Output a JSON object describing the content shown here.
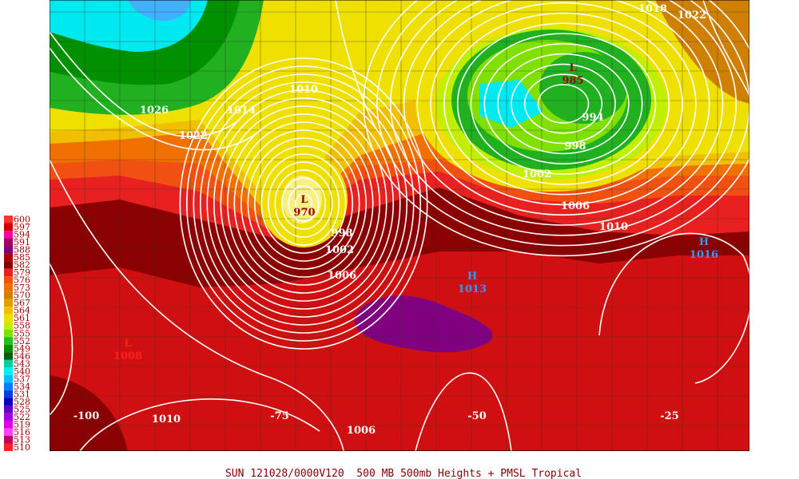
{
  "legend": {
    "items": [
      {
        "label": "600",
        "color": "#ff3030"
      },
      {
        "label": "597",
        "color": "#d00000"
      },
      {
        "label": "594",
        "color": "#ff00a0"
      },
      {
        "label": "591",
        "color": "#a00060"
      },
      {
        "label": "588",
        "color": "#800080"
      },
      {
        "label": "585",
        "color": "#b00000"
      },
      {
        "label": "582",
        "color": "#800000"
      },
      {
        "label": "579",
        "color": "#e82020"
      },
      {
        "label": "576",
        "color": "#f05010"
      },
      {
        "label": "573",
        "color": "#f07000"
      },
      {
        "label": "570",
        "color": "#d08000"
      },
      {
        "label": "567",
        "color": "#e0a000"
      },
      {
        "label": "564",
        "color": "#f0c000"
      },
      {
        "label": "561",
        "color": "#f0e000"
      },
      {
        "label": "558",
        "color": "#c0f000"
      },
      {
        "label": "555",
        "color": "#80e000"
      },
      {
        "label": "552",
        "color": "#20c020"
      },
      {
        "label": "549",
        "color": "#009000"
      },
      {
        "label": "546",
        "color": "#006000"
      },
      {
        "label": "543",
        "color": "#00d0a0"
      },
      {
        "label": "540",
        "color": "#00f0f0"
      },
      {
        "label": "537",
        "color": "#00c0ff"
      },
      {
        "label": "534",
        "color": "#0080ff"
      },
      {
        "label": "531",
        "color": "#0040e0"
      },
      {
        "label": "528",
        "color": "#0000c0"
      },
      {
        "label": "525",
        "color": "#6000c0"
      },
      {
        "label": "522",
        "color": "#a000e0"
      },
      {
        "label": "519",
        "color": "#e000e0"
      },
      {
        "label": "516",
        "color": "#ff40ff"
      },
      {
        "label": "513",
        "color": "#c00060"
      },
      {
        "label": "510",
        "color": "#ff2020"
      }
    ]
  },
  "longitude_labels": [
    "-100",
    "-75",
    "-50",
    "-25"
  ],
  "isobar_labels": [
    "1026",
    "1010",
    "1014",
    "1022",
    "998",
    "1002",
    "1006",
    "994",
    "998",
    "1002",
    "1006",
    "1010",
    "1018",
    "1022",
    "1010",
    "1006"
  ],
  "pressure_centers": [
    {
      "symbol": "L",
      "value": "985"
    },
    {
      "symbol": "L",
      "value": "970"
    },
    {
      "symbol": "H",
      "value": "1013"
    },
    {
      "symbol": "H",
      "value": "1016"
    },
    {
      "symbol": "L",
      "value": "1008"
    }
  ],
  "caption": "SUN 121028/0000V120  500 MB 500mb Heights + PMSL Tropical"
}
